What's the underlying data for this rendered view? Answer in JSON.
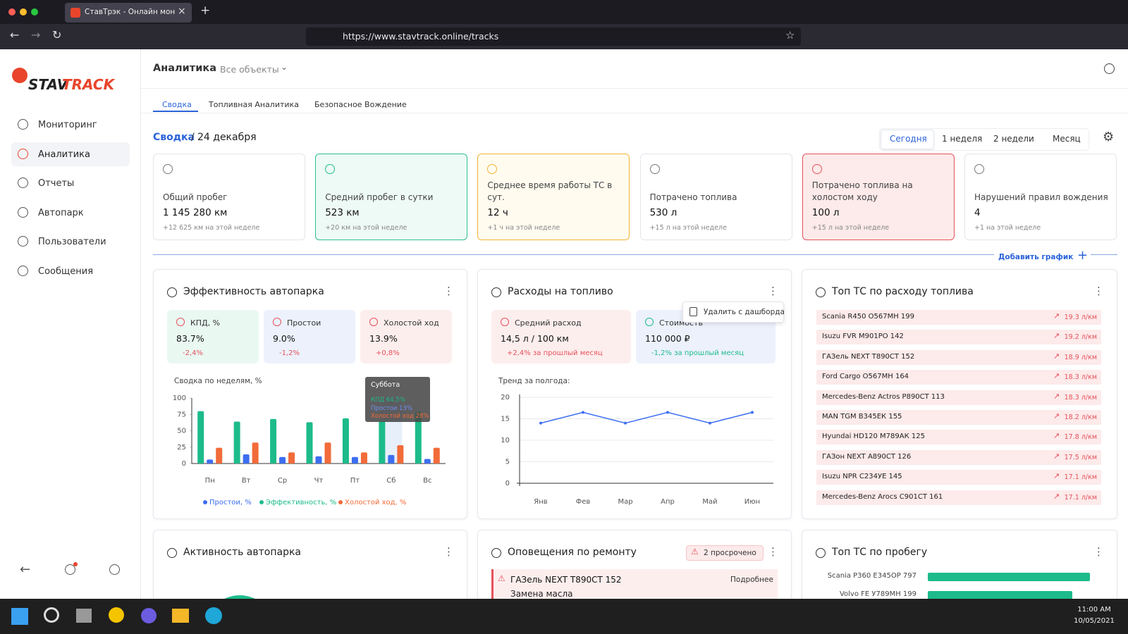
{
  "browser": {
    "tab_title": "СтавТрэк - Онлайн мониторинг",
    "url": "https://www.stavtrack.online/tracks"
  },
  "sidebar": {
    "logo": {
      "first": "STAV",
      "second": "TRACK"
    },
    "nav": [
      "Мониторинг",
      "Аналитика",
      "Отчеты",
      "Автопарк",
      "Пользователи",
      "Сообщения"
    ]
  },
  "header": {
    "title": "Аналитика",
    "filter": "Все объекты",
    "tabs": [
      "Сводка",
      "Топливная Аналитика",
      "Безопасное Вождение"
    ]
  },
  "breadcrumb": {
    "section": "Сводка",
    "separator": "/",
    "date": "24 декабря"
  },
  "periods": [
    "Сегодня",
    "1 неделя",
    "2 недели",
    "Месяц"
  ],
  "kpis": [
    {
      "label": "Общий пробег",
      "value": "1 145 280 км",
      "delta": "+12 625 км на этой неделе"
    },
    {
      "label": "Средний пробег в сутки",
      "value": "523 км",
      "delta": "+20 км на этой неделе"
    },
    {
      "label": "Среднее время работы ТС в сут.",
      "value": "12 ч",
      "delta": "+1 ч на этой неделе"
    },
    {
      "label": "Потрачено топлива",
      "value": "530 л",
      "delta": "+15 л на этой неделе"
    },
    {
      "label": "Потрачено топлива на холостом ходу",
      "value": "100 л",
      "delta": "+15 л на этой неделе"
    },
    {
      "label": "Нарушений правил вождения",
      "value": "4",
      "delta": "+1 на этой неделе"
    }
  ],
  "add_chart": "Добавить график",
  "efficiency": {
    "title": "Эффективность автопарка",
    "stats": [
      {
        "label": "КПД, %",
        "value": "83.7%",
        "delta": "-2,4%"
      },
      {
        "label": "Простои",
        "value": "9.0%",
        "delta": "-1,2%"
      },
      {
        "label": "Холостой ход",
        "value": "13.9%",
        "delta": "+0,8%"
      }
    ],
    "chart_data": {
      "type": "bar",
      "title": "Сводка по неделям, %",
      "categories": [
        "Пн",
        "Вт",
        "Ср",
        "Чт",
        "Пт",
        "Сб",
        "Вс"
      ],
      "series": [
        {
          "name": "Простои, %",
          "color": "#3d6ef0",
          "values": [
            6,
            14,
            10,
            11,
            10,
            13,
            7
          ]
        },
        {
          "name": "Эффективность, %",
          "color": "#1dbb8b",
          "values": [
            80,
            64,
            68,
            63,
            69,
            64.5,
            79
          ]
        },
        {
          "name": "Холостой ход, %",
          "color": "#f26b3a",
          "values": [
            24,
            32,
            17,
            32,
            17,
            28,
            24
          ]
        }
      ],
      "ylim": [
        0,
        100
      ],
      "yticks": [
        0,
        25,
        50,
        75,
        100
      ]
    },
    "tooltip": {
      "title": "Суббота",
      "lines": [
        "КПД 64,5%",
        "Простои 13%",
        "Холостой ход 28%"
      ]
    }
  },
  "fuel": {
    "title": "Расходы на топливо",
    "stats": [
      {
        "label": "Средний расход",
        "value": "14,5 л / 100 км",
        "delta": "+2,4% за прошлый месяц"
      },
      {
        "label": "Стоимость",
        "value": "110 000 ₽",
        "delta": "-1,2% за прошлый месяц"
      }
    ],
    "popup": "Удалить с дашборда",
    "chart_data": {
      "type": "line",
      "title": "Тренд за полгода:",
      "categories": [
        "Янв",
        "Фев",
        "Мар",
        "Апр",
        "Май",
        "Июн"
      ],
      "values": [
        14,
        16.5,
        14,
        16.5,
        14,
        16.5
      ],
      "color": "#3d6ef0",
      "ylim": [
        0,
        20
      ],
      "yticks": [
        0,
        5,
        10,
        15,
        20
      ]
    }
  },
  "top_fuel": {
    "title": "Топ ТС по расходу топлива",
    "rows": [
      {
        "name": "Scania R450 О567МН 199",
        "value": "19.3 л/км"
      },
      {
        "name": "Isuzu FVR М901РО 142",
        "value": "19.2 л/км"
      },
      {
        "name": "ГАЗель NEXT Т890СТ 152",
        "value": "18.9 л/км"
      },
      {
        "name": "Ford Cargo О567МН 164",
        "value": "18.3 л/км"
      },
      {
        "name": "Mercedes-Benz Actros Р890СТ 113",
        "value": "18.3 л/км"
      },
      {
        "name": "MAN TGM В345ЕК 155",
        "value": "18.2 л/км"
      },
      {
        "name": "Hyundai HD120 М789АК 125",
        "value": "17.8 л/км"
      },
      {
        "name": "ГАЗон NEXT А890СТ 126",
        "value": "17.5 л/км"
      },
      {
        "name": "Isuzu NPR С234УЕ 145",
        "value": "17.1 л/км"
      },
      {
        "name": "Mercedes-Benz Arocs С901СТ 161",
        "value": "17.1 л/км"
      }
    ]
  },
  "activity": {
    "title": "Активность автопарка"
  },
  "repair": {
    "title": "Оповещения по ремонту",
    "badge": "2 просрочено",
    "items": [
      {
        "vehicle": "ГАЗель NEXT Т890СТ 152",
        "link": "Подробнее",
        "task": "Замена масла"
      }
    ]
  },
  "top_mileage": {
    "title": "Топ ТС по пробегу",
    "chart_data": {
      "type": "bar",
      "categories": [
        "Scania P360 Е345ОР 797",
        "Volvo FE У789МН 199"
      ],
      "values": [
        100,
        89
      ],
      "color": "#1dbb8b"
    }
  },
  "taskbar": {
    "time": "11:00 AM",
    "date": "10/05/2021"
  }
}
